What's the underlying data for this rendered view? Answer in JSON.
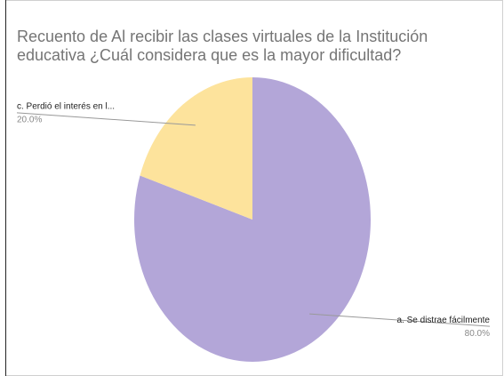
{
  "chart_data": {
    "type": "pie",
    "title": [
      "Recuento de Al recibir las clases virtuales de la Institución",
      "educativa ¿Cuál considera que es la mayor dificultad?"
    ],
    "categories": [
      "a. Se distrae fácilmente",
      "c. Perdió el interés en l..."
    ],
    "values": [
      80,
      20
    ],
    "value_labels": [
      "80.0%",
      "20.0%"
    ],
    "colors": [
      "#b3a6d8",
      "#fde39c"
    ]
  }
}
